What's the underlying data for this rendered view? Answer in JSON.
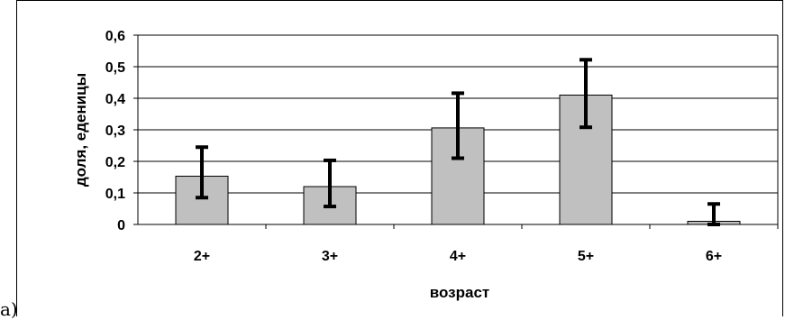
{
  "panel_label": "а)",
  "chart_data": {
    "type": "bar",
    "categories": [
      "2+",
      "3+",
      "4+",
      "5+",
      "6+"
    ],
    "values": [
      0.153,
      0.12,
      0.306,
      0.41,
      0.01
    ],
    "error_low": [
      0.085,
      0.057,
      0.21,
      0.308,
      0.0
    ],
    "error_high": [
      0.245,
      0.203,
      0.416,
      0.522,
      0.065
    ],
    "xlabel": "возраст",
    "ylabel": "доля, еденицы",
    "ylim": [
      0,
      0.6
    ],
    "yticks": [
      "0",
      "0,1",
      "0,2",
      "0,3",
      "0,4",
      "0,5",
      "0,6"
    ],
    "grid": true,
    "colors": {
      "bar": "#c0c0c0",
      "edge": "#000000",
      "grid": "#000000"
    }
  }
}
